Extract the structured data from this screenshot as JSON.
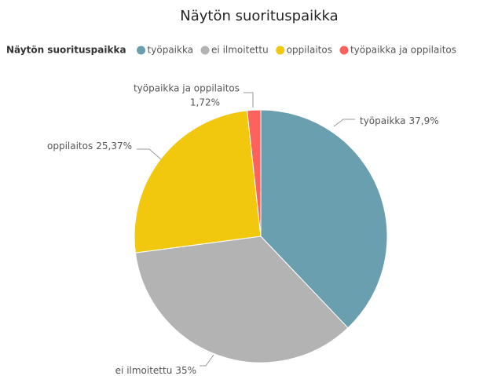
{
  "chart_data": {
    "type": "pie",
    "title": "Näytön suorituspaikka",
    "legend_title": "Näytön suorituspaikka",
    "legend": "top",
    "categories": [
      "työpaikka",
      "ei ilmoitettu",
      "oppilaitos",
      "työpaikka ja oppilaitos"
    ],
    "values": [
      37.9,
      35,
      25.37,
      1.72
    ],
    "value_labels": [
      "37,9%",
      "35%",
      "25,37%",
      "1,72%"
    ],
    "colors": [
      "#6a9fb0",
      "#b3b3b3",
      "#f2c80f",
      "#fd625e"
    ]
  }
}
